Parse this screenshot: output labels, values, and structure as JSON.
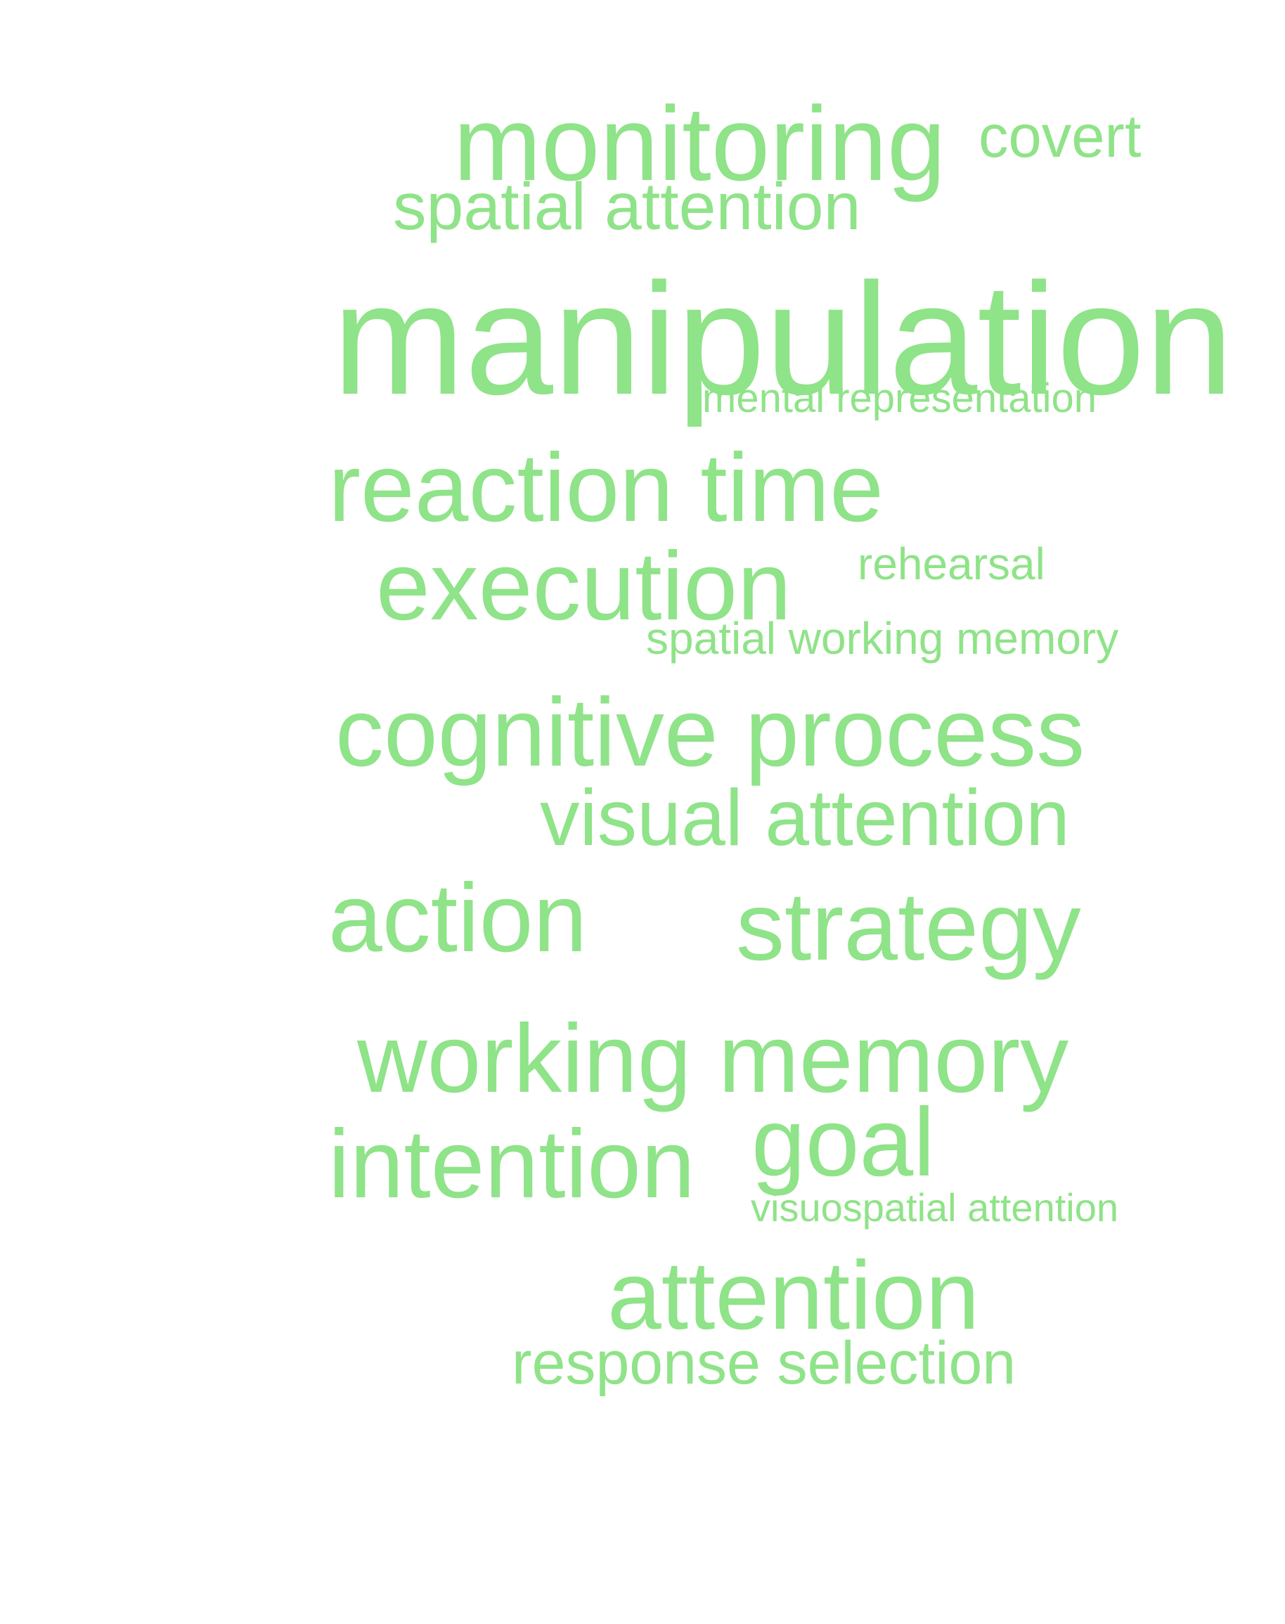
{
  "colors": {
    "background": "#ffffff",
    "word": "#8fe388"
  },
  "words": [
    "monitoring",
    "covert",
    "spatial attention",
    "manipulation",
    "mental representation",
    "reaction time",
    "execution",
    "rehearsal",
    "spatial working memory",
    "cognitive process",
    "visual attention",
    "action",
    "strategy",
    "working memory",
    "intention",
    "goal",
    "visuospatial attention",
    "attention",
    "response selection"
  ]
}
